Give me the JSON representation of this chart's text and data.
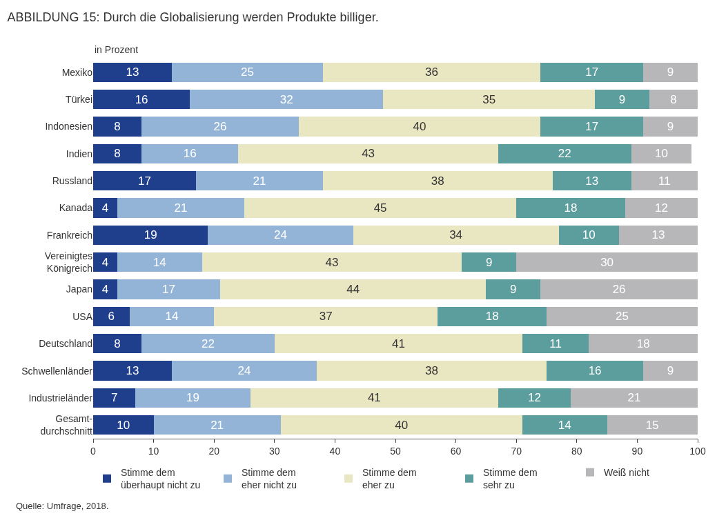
{
  "chart_data": {
    "type": "bar",
    "orientation": "horizontal",
    "stacked": true,
    "title": "ABBILDUNG 15: Durch die Globalisierung werden Produkte billiger.",
    "annotations": [
      "in Prozent",
      "Quelle: Umfrage, 2018."
    ],
    "categories": [
      "Mexiko",
      "Türkei",
      "Indonesien",
      "Indien",
      "Russland",
      "Kanada",
      "Frankreich",
      "Vereinigtes\nKönigreich",
      "Japan",
      "USA",
      "Deutschland",
      "Schwellenländer",
      "Industrieländer",
      "Gesamt-\ndurchschnitt"
    ],
    "series": [
      {
        "name": "Stimme dem\nüberhaupt nicht zu",
        "color": "#1f3e8c",
        "values": [
          13,
          16,
          8,
          8,
          17,
          4,
          19,
          4,
          4,
          6,
          8,
          13,
          7,
          10
        ]
      },
      {
        "name": "Stimme dem\neher nicht zu",
        "color": "#93b4d6",
        "values": [
          25,
          32,
          26,
          16,
          21,
          21,
          24,
          14,
          17,
          14,
          22,
          24,
          19,
          21
        ]
      },
      {
        "name": "Stimme dem\neher zu",
        "color": "#e9e7c2",
        "values": [
          36,
          35,
          40,
          43,
          38,
          45,
          34,
          43,
          44,
          37,
          41,
          38,
          41,
          40
        ]
      },
      {
        "name": "Stimme dem\nsehr zu",
        "color": "#5c9d9e",
        "values": [
          17,
          9,
          17,
          22,
          13,
          18,
          10,
          9,
          9,
          18,
          11,
          16,
          12,
          14
        ]
      },
      {
        "name": "Weiß nicht",
        "color": "#b7b7b9",
        "values": [
          9,
          8,
          9,
          10,
          11,
          12,
          13,
          30,
          26,
          25,
          18,
          9,
          21,
          15
        ]
      }
    ],
    "xlim": [
      0,
      100
    ],
    "xticks": [
      0,
      10,
      20,
      30,
      40,
      50,
      60,
      70,
      80,
      90,
      100
    ],
    "data_labels": true,
    "legend": "bottom"
  }
}
